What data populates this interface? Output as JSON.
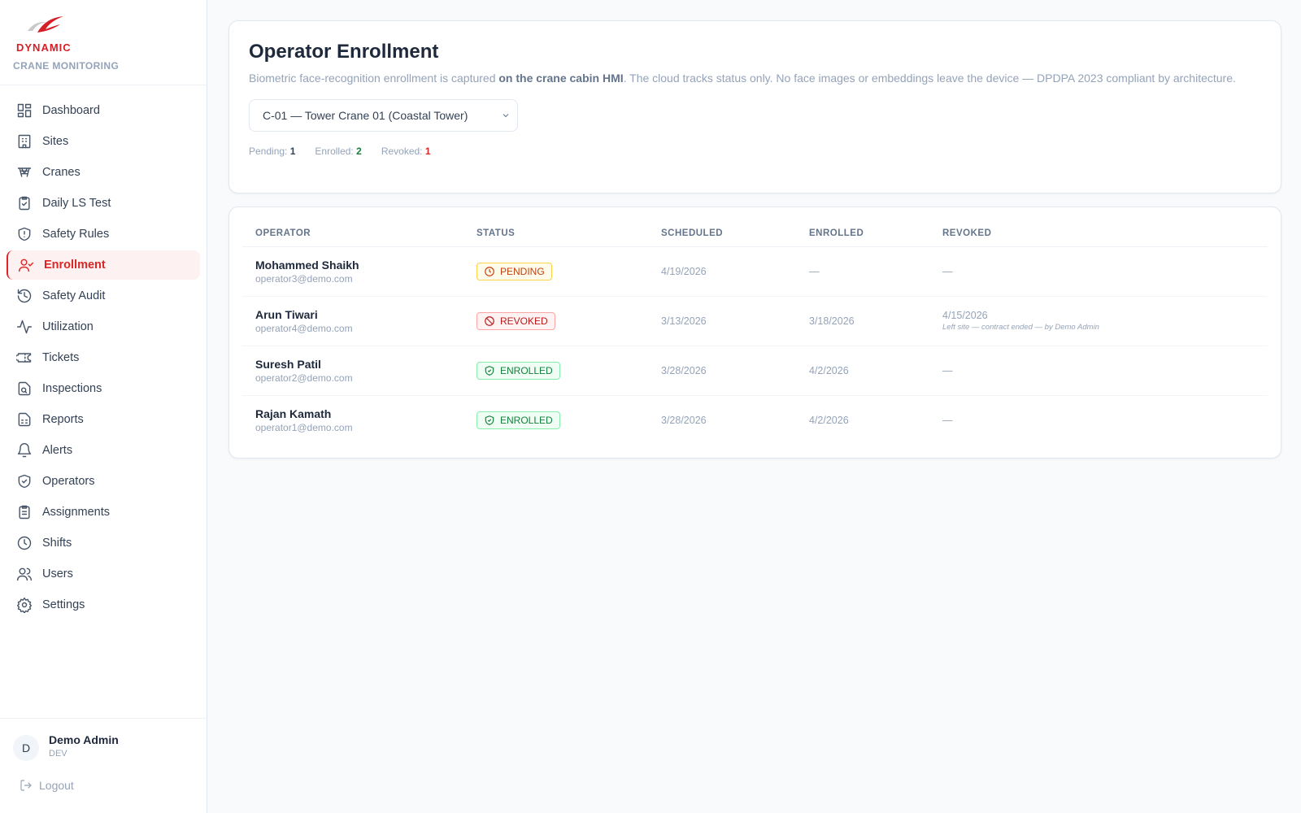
{
  "brand": {
    "logo_text": "DYNAMIC",
    "subtitle": "CRANE MONITORING",
    "accent": "#d51f26"
  },
  "sidebar": {
    "items": [
      {
        "label": "Dashboard",
        "icon": "dashboard-icon"
      },
      {
        "label": "Sites",
        "icon": "building-icon"
      },
      {
        "label": "Cranes",
        "icon": "crane-icon"
      },
      {
        "label": "Daily LS Test",
        "icon": "clipboard-check-icon"
      },
      {
        "label": "Safety Rules",
        "icon": "shield-alert-icon"
      },
      {
        "label": "Enrollment",
        "icon": "user-check-icon",
        "active": true
      },
      {
        "label": "Safety Audit",
        "icon": "history-icon"
      },
      {
        "label": "Utilization",
        "icon": "activity-icon"
      },
      {
        "label": "Tickets",
        "icon": "ticket-icon"
      },
      {
        "label": "Inspections",
        "icon": "file-search-icon"
      },
      {
        "label": "Reports",
        "icon": "file-spreadsheet-icon"
      },
      {
        "label": "Alerts",
        "icon": "bell-icon"
      },
      {
        "label": "Operators",
        "icon": "shield-check-icon"
      },
      {
        "label": "Assignments",
        "icon": "clipboard-list-icon"
      },
      {
        "label": "Shifts",
        "icon": "clock-icon"
      },
      {
        "label": "Users",
        "icon": "users-icon"
      },
      {
        "label": "Settings",
        "icon": "gear-icon"
      }
    ]
  },
  "user": {
    "initial": "D",
    "name": "Demo Admin",
    "role": "DEV",
    "logout": "Logout"
  },
  "header": {
    "title": "Operator Enrollment",
    "desc_1": "Biometric face-recognition enrollment is captured ",
    "desc_bold": "on the crane cabin HMI",
    "desc_2": ". The cloud tracks status only. No face images or embeddings leave the device — DPDPA 2023 compliant by architecture."
  },
  "crane_select": {
    "value": "C-01 — Tower Crane 01 (Coastal Tower)"
  },
  "counts": {
    "pending_label": "Pending:",
    "pending": "1",
    "enrolled_label": "Enrolled:",
    "enrolled": "2",
    "revoked_label": "Revoked:",
    "revoked": "1"
  },
  "table": {
    "columns": [
      "OPERATOR",
      "STATUS",
      "SCHEDULED",
      "ENROLLED",
      "REVOKED"
    ],
    "rows": [
      {
        "name": "Mohammed Shaikh",
        "email": "operator3@demo.com",
        "status": "PENDING",
        "scheduled": "4/19/2026",
        "enrolled": "—",
        "revoked": "—",
        "note": ""
      },
      {
        "name": "Arun Tiwari",
        "email": "operator4@demo.com",
        "status": "REVOKED",
        "scheduled": "3/13/2026",
        "enrolled": "3/18/2026",
        "revoked": "4/15/2026",
        "note": "Left site — contract ended — by Demo Admin"
      },
      {
        "name": "Suresh Patil",
        "email": "operator2@demo.com",
        "status": "ENROLLED",
        "scheduled": "3/28/2026",
        "enrolled": "4/2/2026",
        "revoked": "—",
        "note": ""
      },
      {
        "name": "Rajan Kamath",
        "email": "operator1@demo.com",
        "status": "ENROLLED",
        "scheduled": "3/28/2026",
        "enrolled": "4/2/2026",
        "revoked": "—",
        "note": ""
      }
    ]
  }
}
